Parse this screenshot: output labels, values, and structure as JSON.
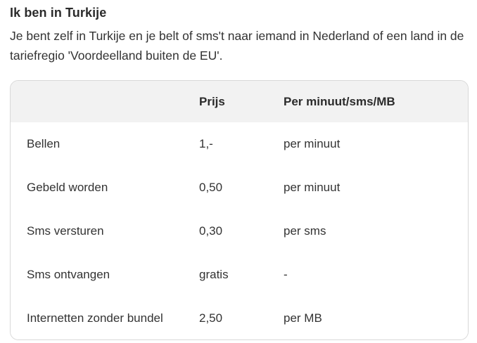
{
  "page": {
    "title": "Ik ben in Turkije",
    "description": "Je bent zelf in Turkije en je belt of sms't naar iemand in Nederland of een land in de tariefregio 'Voordeelland buiten de EU'."
  },
  "table": {
    "headers": [
      "",
      "Prijs",
      "Per minuut/sms/MB"
    ],
    "rows": [
      {
        "label": "Bellen",
        "price": "1,-",
        "unit": "per minuut"
      },
      {
        "label": "Gebeld worden",
        "price": "0,50",
        "unit": "per minuut"
      },
      {
        "label": "Sms versturen",
        "price": "0,30",
        "unit": "per sms"
      },
      {
        "label": "Sms ontvangen",
        "price": "gratis",
        "unit": "-"
      },
      {
        "label": "Internetten zonder bundel",
        "price": "2,50",
        "unit": "per MB"
      }
    ]
  },
  "colors": {
    "header_bg": "#f2f2f2",
    "card_border": "#d8d8d8",
    "text": "#333333",
    "heading_text": "#2b2b2b"
  }
}
